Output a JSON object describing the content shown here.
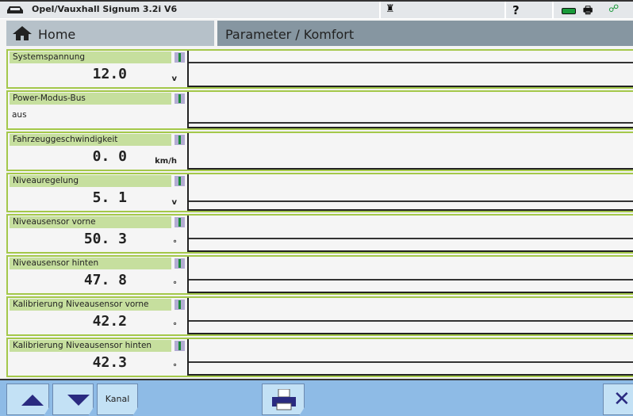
{
  "header": {
    "title": "Opel/Vauxhall Signum 3.2i V6",
    "help": "?",
    "icons": [
      "car-icon",
      "person-icon",
      "help-icon",
      "battery-icon",
      "printer-icon",
      "connection-icon"
    ],
    "battery_color": "#1a9a3a"
  },
  "nav": {
    "home_label": "Home",
    "breadcrumb": "Parameter / Komfort"
  },
  "parameters": [
    {
      "label": "Systemspannung",
      "value": "12.0",
      "unit": "v"
    },
    {
      "label": "Power-Modus-Bus",
      "value": "aus",
      "unit": ""
    },
    {
      "label": "Fahrzeuggeschwindigkeit",
      "value": "0. 0",
      "unit": "km/h"
    },
    {
      "label": "Niveauregelung",
      "value": "5. 1",
      "unit": "v"
    },
    {
      "label": "Niveausensor vorne",
      "value": "50. 3",
      "unit": "°"
    },
    {
      "label": "Niveausensor hinten",
      "value": "47. 8",
      "unit": "°"
    },
    {
      "label": "Kalibrierung Niveausensor vorne",
      "value": "42.2",
      "unit": "°"
    },
    {
      "label": "Kalibrierung Niveausensor hinten",
      "value": "42.3",
      "unit": "°"
    }
  ],
  "footer": {
    "up": "up-arrow",
    "down": "down-arrow",
    "kanal": "Kanal",
    "print": "printer-icon",
    "close": "close-icon"
  }
}
